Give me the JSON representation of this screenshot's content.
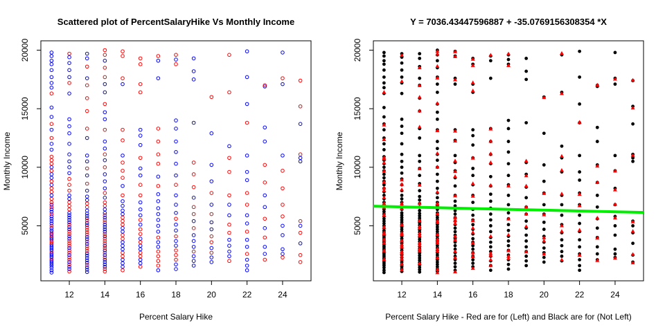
{
  "chart_data": [
    {
      "type": "scatter",
      "title": "Scattered plot of PercentSalaryHike Vs Monthly Income",
      "xlabel": "Percent Salary Hike",
      "ylabel": "Monthly Income",
      "xlim": [
        10.4,
        25.6
      ],
      "ylim": [
        300,
        20800
      ],
      "xticks": [
        "12",
        "14",
        "16",
        "18",
        "20",
        "22",
        "24"
      ],
      "yticks": [
        "5000",
        "10000",
        "15000",
        "20000"
      ],
      "marker": "open-circle",
      "series": [
        {
          "color": "#0000FF",
          "points": []
        },
        {
          "color": "#FF0000",
          "points": []
        }
      ]
    },
    {
      "type": "scatter",
      "title": "Y =  7036.43447596887 + -35.0769156308354 *X",
      "xlabel": "Percent Salary Hike - Red are for (Left) and Black are for (Not Left)",
      "ylabel": "Monthly Income",
      "xlim": [
        10.4,
        25.6
      ],
      "ylim": [
        300,
        20800
      ],
      "xticks": [
        "12",
        "14",
        "16",
        "18",
        "20",
        "22",
        "24"
      ],
      "yticks": [
        "5000",
        "10000",
        "15000",
        "20000"
      ],
      "series": [
        {
          "name": "Not Left",
          "color": "#000000",
          "marker": "filled-circle",
          "points": []
        },
        {
          "name": "Left",
          "color": "#FF0000",
          "marker": "filled-triangle",
          "points": []
        }
      ],
      "regression": {
        "intercept": 7036.43447596887,
        "slope": -35.0769156308354,
        "x": [
          10.4,
          25.6
        ],
        "color": "#00EE00"
      }
    }
  ],
  "source_data": {
    "x_values": [
      11,
      12,
      13,
      14,
      15,
      16,
      17,
      18,
      19,
      20,
      21,
      22,
      23,
      24,
      25
    ],
    "incomes": {
      "11": [
        1009,
        1200,
        1420,
        1600,
        1750,
        1900,
        2050,
        2200,
        2350,
        2500,
        2650,
        2800,
        2950,
        3100,
        3250,
        3400,
        3550,
        3700,
        3850,
        4000,
        4150,
        4300,
        4450,
        4600,
        4800,
        5000,
        5200,
        5400,
        5600,
        5800,
        6000,
        6200,
        6400,
        6600,
        6800,
        7000,
        7300,
        7600,
        7900,
        8200,
        8500,
        8800,
        9100,
        9400,
        9700,
        10000,
        10300,
        10600,
        10900,
        11500,
        12000,
        12500,
        13200,
        13700,
        14300,
        15100,
        16300,
        16800,
        17200,
        17700,
        18300,
        18800,
        19100,
        19500,
        19800
      ],
      "12": [
        1100,
        1300,
        1500,
        1700,
        1900,
        2100,
        2300,
        2500,
        2700,
        2900,
        3100,
        3300,
        3500,
        3700,
        3900,
        4100,
        4300,
        4500,
        4700,
        4900,
        5100,
        5300,
        5500,
        5700,
        5900,
        6100,
        6400,
        6700,
        7000,
        7300,
        7600,
        8000,
        8500,
        9000,
        9500,
        10000,
        10500,
        11100,
        12000,
        12900,
        13500,
        14100,
        16300,
        17200,
        17700,
        18300,
        18900,
        19400,
        19700
      ],
      "13": [
        1050,
        1250,
        1450,
        1650,
        1850,
        2050,
        2250,
        2450,
        2650,
        2850,
        3050,
        3250,
        3450,
        3650,
        3850,
        4050,
        4250,
        4450,
        4650,
        4850,
        5050,
        5250,
        5450,
        5650,
        5850,
        6050,
        6300,
        6600,
        6900,
        7200,
        7500,
        8000,
        8600,
        9300,
        9900,
        10500,
        11000,
        12500,
        13300,
        14800,
        15900,
        17000,
        17600,
        18600,
        19300,
        19700
      ],
      "14": [
        1100,
        1300,
        1500,
        1700,
        1900,
        2100,
        2300,
        2500,
        2700,
        2900,
        3100,
        3300,
        3500,
        3700,
        3900,
        4100,
        4300,
        4500,
        4700,
        4900,
        5100,
        5300,
        5500,
        5700,
        5900,
        6100,
        6400,
        6700,
        7000,
        7400,
        7800,
        8200,
        8800,
        9400,
        10000,
        10600,
        11100,
        11600,
        12200,
        13200,
        14100,
        14700,
        15400,
        16400,
        17100,
        17700,
        18500,
        19100,
        19600,
        20000
      ],
      "15": [
        1200,
        1500,
        1800,
        2100,
        2400,
        2700,
        3000,
        3300,
        3600,
        3900,
        4200,
        4500,
        4800,
        5100,
        5400,
        5700,
        6000,
        6300,
        6700,
        7100,
        7600,
        8400,
        9100,
        9700,
        10400,
        11000,
        12300,
        13200,
        17100,
        17600,
        19500,
        19900
      ],
      "16": [
        1500,
        1800,
        2100,
        2400,
        2700,
        3000,
        3300,
        3600,
        3900,
        4300,
        4700,
        5100,
        5500,
        5900,
        6400,
        7000,
        7600,
        8500,
        9300,
        9900,
        10800,
        11900,
        12700,
        13200,
        16400,
        17100,
        18800,
        19300
      ],
      "17": [
        1200,
        1600,
        2000,
        2400,
        2800,
        3200,
        3600,
        4000,
        4500,
        5000,
        5500,
        6000,
        6500,
        7100,
        7700,
        8400,
        9200,
        10300,
        11100,
        12200,
        13300,
        17600,
        19100,
        19500
      ],
      "18": [
        1300,
        1700,
        2100,
        2500,
        2900,
        3300,
        3700,
        4100,
        4600,
        5100,
        5600,
        6100,
        6800,
        7600,
        8500,
        9300,
        10300,
        11300,
        12200,
        13300,
        14000,
        18800,
        19200,
        19600
      ],
      "19": [
        1600,
        2000,
        2400,
        2800,
        3200,
        3700,
        4200,
        4800,
        5400,
        6000,
        6600,
        7400,
        8300,
        9400,
        10400,
        13800,
        17500,
        18200,
        19300
      ],
      "20": [
        1900,
        2300,
        2700,
        3100,
        3600,
        4100,
        4700,
        5300,
        6000,
        6800,
        7800,
        8800,
        10200,
        12900,
        16000
      ],
      "21": [
        2000,
        2400,
        2800,
        3300,
        3800,
        4400,
        5100,
        5900,
        6800,
        7600,
        9600,
        10800,
        11800,
        16400,
        19600
      ],
      "22": [
        1200,
        1600,
        2100,
        2600,
        3200,
        3800,
        4500,
        5200,
        5900,
        6800,
        7800,
        8900,
        9600,
        11000,
        13800,
        15400,
        17700,
        19900
      ],
      "23": [
        2100,
        2600,
        3200,
        4000,
        4800,
        5600,
        6600,
        7600,
        8700,
        10200,
        12200,
        13400,
        16900,
        17000
      ],
      "24": [
        2300,
        2600,
        3000,
        4200,
        5000,
        5800,
        6800,
        8200,
        9700,
        11000,
        17100,
        17600,
        19800
      ],
      "25": [
        1900,
        2500,
        3500,
        4400,
        5000,
        5400,
        10500,
        10800,
        11100,
        13700,
        15200,
        17400
      ]
    }
  }
}
